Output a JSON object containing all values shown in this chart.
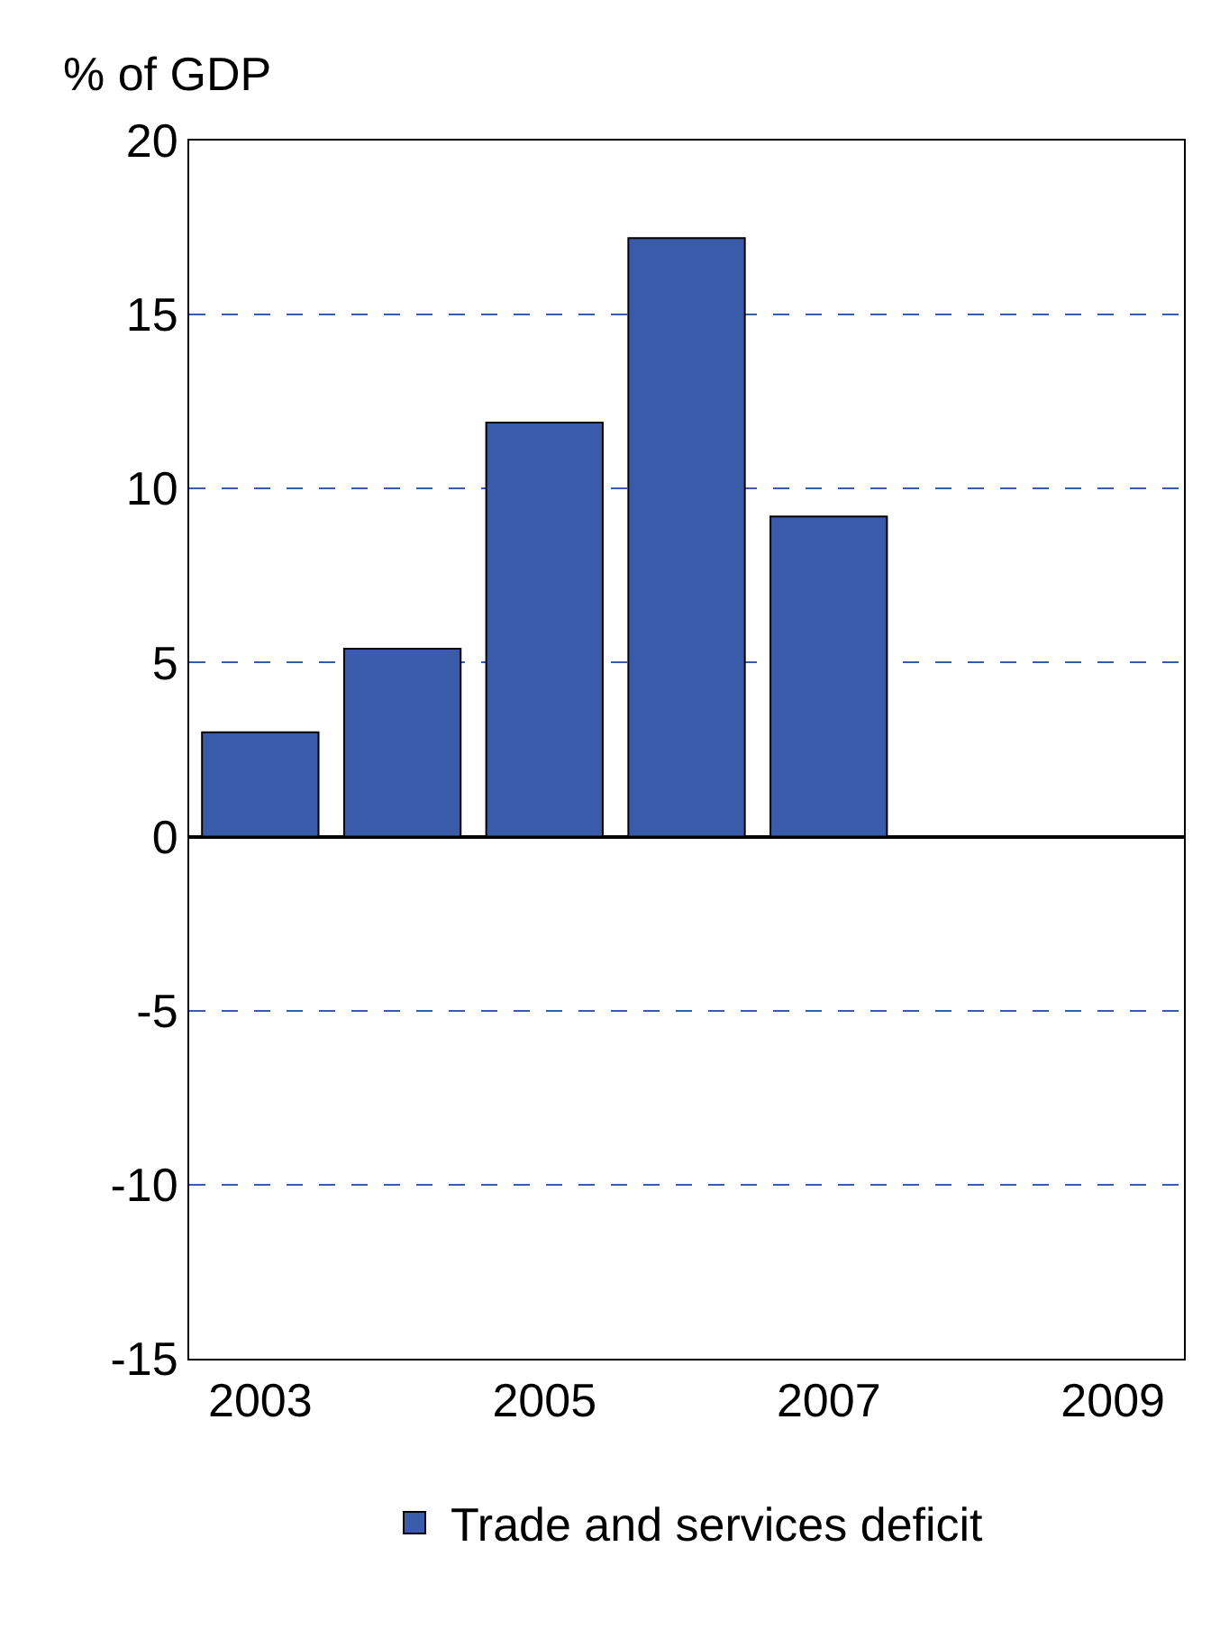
{
  "chart_data": {
    "type": "bar",
    "ylabel": "% of GDP",
    "categories": [
      "2003",
      null,
      "2005",
      null,
      "2007",
      null,
      "2009"
    ],
    "series": [
      {
        "name": "Trade and services deficit",
        "color": "#3a5ba9",
        "values": [
          3.0,
          5.4,
          11.9,
          17.2,
          9.2,
          null,
          null
        ]
      }
    ],
    "ylim": [
      -15,
      20
    ],
    "yticks": [
      -15,
      -10,
      -5,
      0,
      5,
      10,
      15,
      20
    ],
    "grid": "y",
    "legend": "bottom"
  }
}
